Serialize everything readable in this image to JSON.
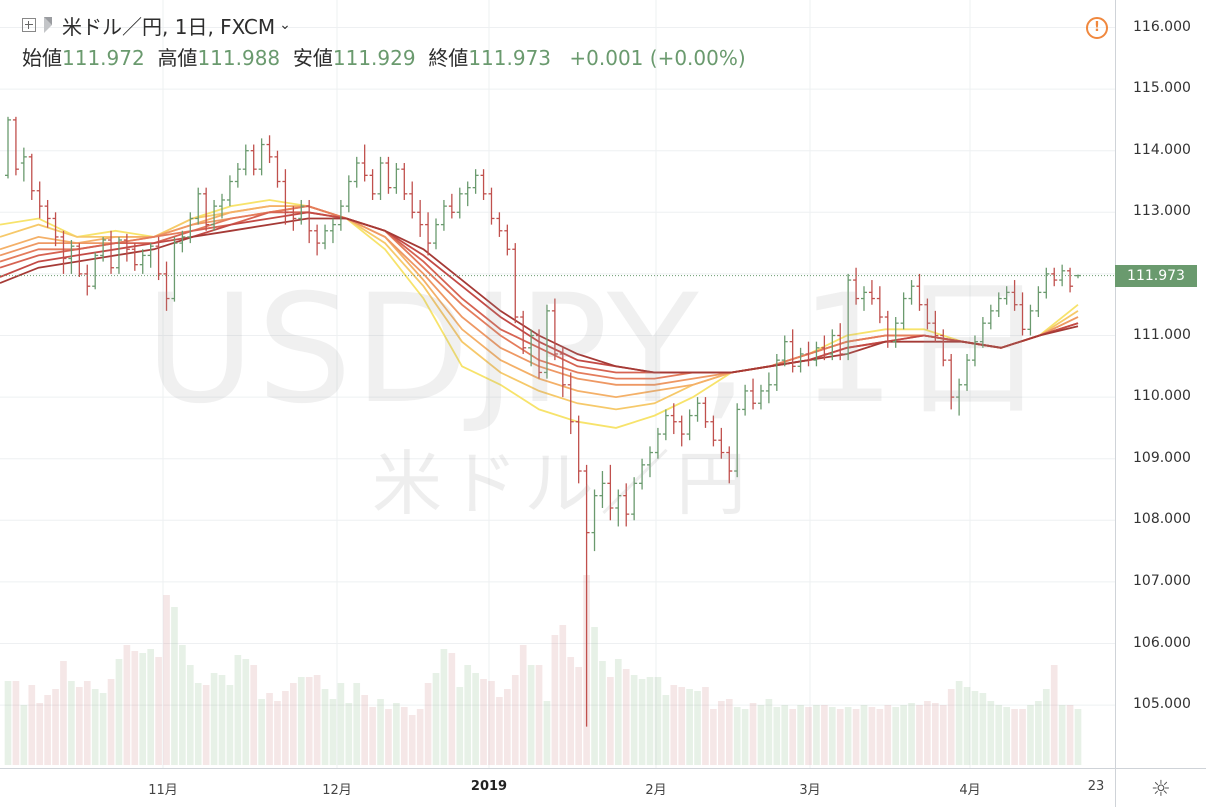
{
  "header": {
    "symbol": "米ドル／円, 1日, FXCM",
    "open_label": "始値",
    "open": "111.972",
    "high_label": "高値",
    "high": "111.988",
    "low_label": "安値",
    "low": "111.929",
    "close_label": "終値",
    "close": "111.973",
    "change": "+0.001 (+0.00%)"
  },
  "watermark": {
    "main": "USDJPY, 1日",
    "sub": "米ドル／円"
  },
  "alert_icon": "alert-circle-icon",
  "settings_icon": "gear-icon",
  "colors": {
    "up": "#6a9a6e",
    "down": "#c0504d",
    "accent_alert": "#f0883e",
    "grid": "#eef0f2"
  },
  "price_axis": {
    "ticks": [
      "116.000",
      "115.000",
      "114.000",
      "113.000",
      "112.000",
      "111.000",
      "110.000",
      "109.000",
      "108.000",
      "107.000",
      "106.000",
      "105.000"
    ],
    "last_price": "111.973"
  },
  "time_axis": {
    "labels": [
      {
        "text": "11月",
        "bold": false
      },
      {
        "text": "12月",
        "bold": false
      },
      {
        "text": "2019",
        "bold": true
      },
      {
        "text": "2月",
        "bold": false
      },
      {
        "text": "3月",
        "bold": false
      },
      {
        "text": "4月",
        "bold": false
      },
      {
        "text": "23",
        "bold": false
      }
    ]
  },
  "chart_data": {
    "type": "ohlc",
    "ylim": [
      104.1,
      116.4
    ],
    "bars": [
      [
        113.6,
        114.55,
        113.55,
        114.5
      ],
      [
        114.5,
        114.55,
        113.6,
        113.7
      ],
      [
        113.8,
        114.05,
        113.5,
        113.9
      ],
      [
        113.9,
        113.95,
        113.2,
        113.35
      ],
      [
        113.35,
        113.5,
        112.9,
        113.1
      ],
      [
        113.1,
        113.2,
        112.75,
        112.9
      ],
      [
        112.9,
        113.0,
        112.45,
        112.6
      ],
      [
        112.6,
        112.7,
        112.0,
        112.25
      ],
      [
        112.25,
        112.55,
        112.0,
        112.45
      ],
      [
        112.45,
        112.5,
        111.95,
        112.0
      ],
      [
        112.0,
        112.15,
        111.65,
        111.8
      ],
      [
        111.8,
        112.35,
        111.75,
        112.3
      ],
      [
        112.3,
        112.6,
        112.2,
        112.55
      ],
      [
        112.55,
        112.7,
        112.0,
        112.1
      ],
      [
        112.1,
        112.6,
        112.0,
        112.55
      ],
      [
        112.55,
        112.65,
        112.2,
        112.4
      ],
      [
        112.4,
        112.5,
        112.05,
        112.15
      ],
      [
        112.15,
        112.4,
        112.0,
        112.3
      ],
      [
        112.3,
        112.5,
        112.1,
        112.45
      ],
      [
        112.45,
        112.6,
        111.9,
        112.0
      ],
      [
        112.0,
        112.2,
        111.4,
        111.6
      ],
      [
        111.6,
        112.6,
        111.55,
        112.5
      ],
      [
        112.5,
        112.7,
        112.35,
        112.6
      ],
      [
        112.6,
        113.0,
        112.5,
        112.9
      ],
      [
        112.9,
        113.4,
        112.8,
        113.3
      ],
      [
        113.3,
        113.4,
        112.7,
        112.8
      ],
      [
        112.8,
        113.2,
        112.7,
        113.1
      ],
      [
        113.1,
        113.3,
        112.9,
        113.2
      ],
      [
        113.2,
        113.6,
        113.1,
        113.5
      ],
      [
        113.5,
        113.8,
        113.4,
        113.7
      ],
      [
        113.7,
        114.1,
        113.6,
        114.0
      ],
      [
        114.0,
        114.1,
        113.6,
        113.7
      ],
      [
        113.7,
        114.2,
        113.6,
        114.1
      ],
      [
        114.1,
        114.25,
        113.8,
        113.9
      ],
      [
        113.9,
        114.0,
        113.4,
        113.5
      ],
      [
        113.5,
        113.7,
        112.8,
        113.0
      ],
      [
        113.0,
        113.1,
        112.7,
        112.9
      ],
      [
        112.9,
        113.2,
        112.8,
        113.1
      ],
      [
        113.1,
        113.2,
        112.5,
        112.7
      ],
      [
        112.7,
        112.8,
        112.3,
        112.5
      ],
      [
        112.5,
        112.8,
        112.4,
        112.7
      ],
      [
        112.7,
        112.9,
        112.5,
        112.8
      ],
      [
        112.8,
        113.2,
        112.7,
        113.1
      ],
      [
        113.1,
        113.6,
        113.0,
        113.5
      ],
      [
        113.5,
        113.9,
        113.4,
        113.8
      ],
      [
        113.8,
        114.1,
        113.5,
        113.6
      ],
      [
        113.6,
        113.7,
        113.2,
        113.3
      ],
      [
        113.3,
        113.9,
        113.2,
        113.8
      ],
      [
        113.8,
        113.9,
        113.3,
        113.4
      ],
      [
        113.4,
        113.8,
        113.3,
        113.7
      ],
      [
        113.7,
        113.8,
        113.2,
        113.3
      ],
      [
        113.3,
        113.5,
        112.9,
        113.0
      ],
      [
        113.0,
        113.2,
        112.6,
        112.8
      ],
      [
        112.8,
        113.0,
        112.3,
        112.5
      ],
      [
        112.5,
        112.9,
        112.4,
        112.8
      ],
      [
        112.8,
        113.2,
        112.7,
        113.1
      ],
      [
        113.1,
        113.3,
        112.9,
        113.0
      ],
      [
        113.0,
        113.4,
        112.9,
        113.3
      ],
      [
        113.3,
        113.5,
        113.1,
        113.4
      ],
      [
        113.4,
        113.7,
        113.3,
        113.6
      ],
      [
        113.6,
        113.7,
        113.2,
        113.3
      ],
      [
        113.3,
        113.4,
        112.8,
        112.9
      ],
      [
        112.9,
        113.0,
        112.6,
        112.7
      ],
      [
        112.7,
        112.8,
        112.3,
        112.4
      ],
      [
        112.4,
        112.5,
        111.2,
        111.3
      ],
      [
        111.3,
        111.4,
        110.7,
        110.8
      ],
      [
        110.8,
        111.1,
        110.5,
        111.0
      ],
      [
        111.0,
        111.1,
        110.3,
        110.4
      ],
      [
        110.4,
        111.5,
        110.3,
        111.4
      ],
      [
        111.4,
        111.6,
        110.6,
        110.7
      ],
      [
        110.7,
        110.8,
        110.0,
        110.2
      ],
      [
        110.2,
        110.4,
        109.4,
        109.6
      ],
      [
        109.6,
        109.7,
        108.6,
        108.8
      ],
      [
        108.8,
        108.9,
        104.65,
        107.8
      ],
      [
        107.8,
        108.5,
        107.5,
        108.4
      ],
      [
        108.4,
        108.8,
        108.2,
        108.6
      ],
      [
        108.6,
        108.9,
        108.0,
        108.2
      ],
      [
        108.2,
        108.5,
        107.9,
        108.4
      ],
      [
        108.4,
        108.6,
        107.9,
        108.1
      ],
      [
        108.1,
        108.7,
        108.0,
        108.6
      ],
      [
        108.6,
        109.0,
        108.5,
        108.9
      ],
      [
        108.9,
        109.2,
        108.7,
        109.1
      ],
      [
        109.1,
        109.5,
        109.0,
        109.4
      ],
      [
        109.4,
        109.8,
        109.3,
        109.7
      ],
      [
        109.7,
        109.9,
        109.4,
        109.6
      ],
      [
        109.6,
        109.7,
        109.2,
        109.4
      ],
      [
        109.4,
        109.8,
        109.3,
        109.7
      ],
      [
        109.7,
        110.0,
        109.6,
        109.9
      ],
      [
        109.9,
        110.0,
        109.5,
        109.6
      ],
      [
        109.6,
        109.7,
        109.2,
        109.3
      ],
      [
        109.3,
        109.5,
        109.0,
        109.1
      ],
      [
        109.1,
        109.2,
        108.6,
        108.8
      ],
      [
        108.8,
        109.9,
        108.7,
        109.8
      ],
      [
        109.8,
        110.2,
        109.7,
        110.1
      ],
      [
        110.1,
        110.3,
        109.8,
        109.9
      ],
      [
        109.9,
        110.2,
        109.8,
        110.1
      ],
      [
        110.1,
        110.4,
        109.9,
        110.2
      ],
      [
        110.2,
        110.7,
        110.1,
        110.6
      ],
      [
        110.6,
        111.0,
        110.5,
        110.9
      ],
      [
        110.9,
        111.1,
        110.4,
        110.5
      ],
      [
        110.5,
        110.8,
        110.4,
        110.7
      ],
      [
        110.7,
        110.9,
        110.5,
        110.6
      ],
      [
        110.6,
        110.9,
        110.5,
        110.8
      ],
      [
        110.8,
        111.0,
        110.6,
        110.7
      ],
      [
        110.7,
        111.1,
        110.6,
        111.0
      ],
      [
        111.0,
        111.2,
        110.6,
        110.7
      ],
      [
        110.7,
        112.0,
        110.6,
        111.9
      ],
      [
        111.9,
        112.1,
        111.5,
        111.6
      ],
      [
        111.6,
        111.8,
        111.4,
        111.7
      ],
      [
        111.7,
        111.9,
        111.5,
        111.6
      ],
      [
        111.6,
        111.8,
        111.2,
        111.3
      ],
      [
        111.3,
        111.4,
        110.8,
        110.9
      ],
      [
        110.9,
        111.3,
        110.8,
        111.2
      ],
      [
        111.2,
        111.7,
        111.1,
        111.6
      ],
      [
        111.6,
        111.9,
        111.5,
        111.8
      ],
      [
        111.8,
        112.0,
        111.4,
        111.5
      ],
      [
        111.5,
        111.6,
        111.1,
        111.2
      ],
      [
        111.2,
        111.4,
        110.9,
        111.0
      ],
      [
        111.0,
        111.1,
        110.5,
        110.6
      ],
      [
        110.6,
        110.7,
        109.8,
        110.0
      ],
      [
        110.0,
        110.3,
        109.7,
        110.2
      ],
      [
        110.2,
        110.7,
        110.1,
        110.6
      ],
      [
        110.6,
        111.0,
        110.5,
        110.9
      ],
      [
        110.9,
        111.3,
        110.8,
        111.2
      ],
      [
        111.2,
        111.5,
        111.1,
        111.4
      ],
      [
        111.4,
        111.7,
        111.3,
        111.6
      ],
      [
        111.6,
        111.8,
        111.5,
        111.7
      ],
      [
        111.7,
        111.9,
        111.4,
        111.5
      ],
      [
        111.5,
        111.7,
        111.0,
        111.1
      ],
      [
        111.1,
        111.5,
        111.0,
        111.4
      ],
      [
        111.4,
        111.8,
        111.3,
        111.7
      ],
      [
        111.7,
        112.1,
        111.6,
        112.0
      ],
      [
        112.0,
        112.1,
        111.8,
        111.9
      ],
      [
        111.9,
        112.15,
        111.8,
        112.05
      ],
      [
        112.05,
        112.1,
        111.7,
        111.8
      ],
      [
        111.972,
        111.988,
        111.929,
        111.973
      ]
    ],
    "ribbon": [
      {
        "color": "#f7e36b",
        "values": [
          112.8,
          112.9,
          112.6,
          112.7,
          112.6,
          112.9,
          113.1,
          113.2,
          113.1,
          112.9,
          112.4,
          111.6,
          110.5,
          110.2,
          109.8,
          109.6,
          109.5,
          109.7,
          110.0,
          110.4,
          110.5,
          110.7,
          111.0,
          111.1,
          111.1,
          110.9,
          110.8,
          111.0,
          111.5
        ]
      },
      {
        "color": "#f6c96a",
        "values": [
          112.6,
          112.8,
          112.6,
          112.6,
          112.6,
          112.9,
          113.0,
          113.1,
          113.1,
          112.9,
          112.5,
          111.8,
          110.9,
          110.4,
          110.1,
          109.9,
          109.8,
          109.9,
          110.2,
          110.4,
          110.5,
          110.7,
          110.9,
          111.0,
          111.0,
          110.9,
          110.8,
          111.0,
          111.4
        ]
      },
      {
        "color": "#f4b068",
        "values": [
          112.4,
          112.6,
          112.5,
          112.6,
          112.6,
          112.8,
          113.0,
          113.1,
          113.1,
          112.9,
          112.6,
          111.9,
          111.1,
          110.6,
          110.3,
          110.1,
          110.0,
          110.1,
          110.2,
          110.4,
          110.5,
          110.7,
          110.9,
          111.0,
          111.0,
          110.9,
          110.8,
          111.0,
          111.3
        ]
      },
      {
        "color": "#ee9864",
        "values": [
          112.3,
          112.5,
          112.5,
          112.5,
          112.6,
          112.8,
          112.9,
          113.0,
          113.1,
          112.9,
          112.6,
          112.0,
          111.3,
          110.8,
          110.5,
          110.3,
          110.2,
          110.2,
          110.3,
          110.4,
          110.5,
          110.7,
          110.9,
          111.0,
          111.0,
          110.9,
          110.8,
          111.0,
          111.3
        ]
      },
      {
        "color": "#e47c5c",
        "values": [
          112.2,
          112.4,
          112.4,
          112.5,
          112.6,
          112.7,
          112.9,
          113.0,
          113.1,
          112.9,
          112.7,
          112.1,
          111.5,
          111.0,
          110.6,
          110.4,
          110.3,
          110.3,
          110.4,
          110.4,
          110.5,
          110.7,
          110.9,
          111.0,
          111.0,
          110.9,
          110.8,
          111.0,
          111.2
        ]
      },
      {
        "color": "#d66352",
        "values": [
          112.1,
          112.3,
          112.4,
          112.5,
          112.5,
          112.7,
          112.8,
          113.0,
          113.0,
          112.9,
          112.7,
          112.2,
          111.6,
          111.1,
          110.8,
          110.5,
          110.4,
          110.4,
          110.4,
          110.4,
          110.5,
          110.6,
          110.8,
          110.9,
          111.0,
          110.9,
          110.8,
          111.0,
          111.2
        ]
      },
      {
        "color": "#c34a45",
        "values": [
          111.95,
          112.2,
          112.3,
          112.4,
          112.5,
          112.6,
          112.8,
          112.9,
          113.0,
          112.9,
          112.7,
          112.3,
          111.8,
          111.3,
          110.9,
          110.6,
          110.5,
          110.4,
          110.4,
          110.4,
          110.5,
          110.6,
          110.8,
          110.9,
          111.0,
          110.9,
          110.8,
          111.0,
          111.2
        ]
      },
      {
        "color": "#a53a36",
        "values": [
          111.85,
          112.1,
          112.2,
          112.3,
          112.4,
          112.6,
          112.7,
          112.8,
          112.9,
          112.9,
          112.7,
          112.4,
          111.9,
          111.4,
          111.0,
          110.7,
          110.5,
          110.4,
          110.4,
          110.4,
          110.5,
          110.6,
          110.7,
          110.9,
          110.9,
          110.9,
          110.8,
          111.0,
          111.15
        ]
      }
    ],
    "volumes": [
      0.42,
      0.42,
      0.3,
      0.4,
      0.31,
      0.35,
      0.38,
      0.52,
      0.42,
      0.39,
      0.42,
      0.38,
      0.36,
      0.43,
      0.53,
      0.6,
      0.57,
      0.56,
      0.58,
      0.54,
      0.85,
      0.79,
      0.6,
      0.5,
      0.41,
      0.4,
      0.46,
      0.45,
      0.4,
      0.55,
      0.53,
      0.5,
      0.33,
      0.36,
      0.32,
      0.37,
      0.41,
      0.44,
      0.44,
      0.45,
      0.38,
      0.33,
      0.41,
      0.31,
      0.41,
      0.35,
      0.29,
      0.33,
      0.28,
      0.31,
      0.29,
      0.25,
      0.28,
      0.41,
      0.46,
      0.58,
      0.56,
      0.39,
      0.5,
      0.46,
      0.43,
      0.42,
      0.34,
      0.38,
      0.45,
      0.6,
      0.5,
      0.5,
      0.32,
      0.65,
      0.7,
      0.54,
      0.49,
      0.95,
      0.69,
      0.52,
      0.44,
      0.53,
      0.48,
      0.45,
      0.43,
      0.44,
      0.44,
      0.35,
      0.4,
      0.39,
      0.38,
      0.37,
      0.39,
      0.28,
      0.32,
      0.33,
      0.29,
      0.28,
      0.31,
      0.3,
      0.33,
      0.29,
      0.3,
      0.28,
      0.3,
      0.29,
      0.3,
      0.3,
      0.29,
      0.28,
      0.29,
      0.28,
      0.3,
      0.29,
      0.28,
      0.3,
      0.29,
      0.3,
      0.31,
      0.3,
      0.32,
      0.31,
      0.3,
      0.38,
      0.42,
      0.39,
      0.37,
      0.36,
      0.32,
      0.3,
      0.29,
      0.28,
      0.28,
      0.3,
      0.32,
      0.38,
      0.5,
      0.3,
      0.3,
      0.28,
      0.08
    ]
  }
}
